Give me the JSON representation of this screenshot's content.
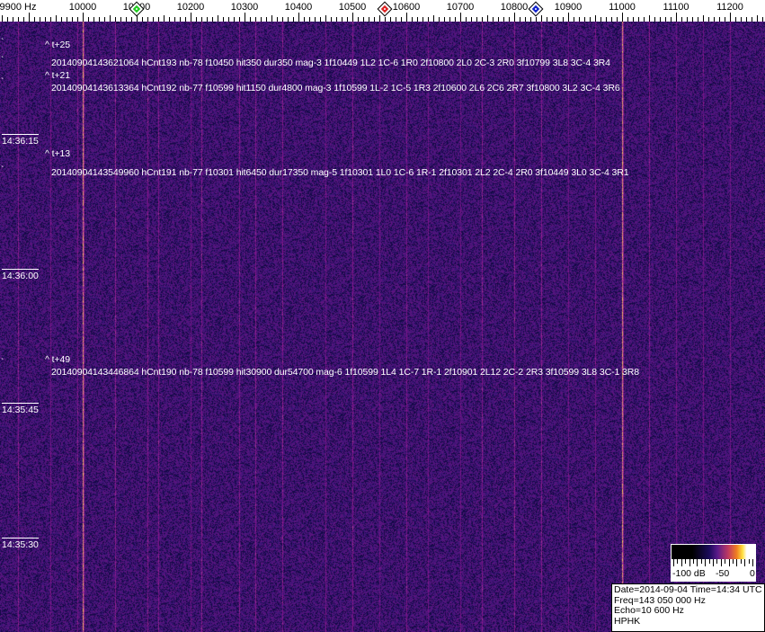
{
  "chart_data": {
    "type": "heatmap",
    "xlabel_unit": "Hz",
    "x_tick_labels": [
      "9900 Hz",
      "10000",
      "10100",
      "10200",
      "10300",
      "10400",
      "10500",
      "10600",
      "10700",
      "10800",
      "10900",
      "11000",
      "11100",
      "11200"
    ],
    "x_ticks": [
      9900,
      10000,
      10100,
      10200,
      10300,
      10400,
      10500,
      10600,
      10700,
      10800,
      10900,
      11000,
      11100,
      11200
    ],
    "xlim": [
      9847,
      11262
    ],
    "y_time_labels": [
      "14:36:15",
      "14:36:00",
      "14:35:45",
      "14:35:30"
    ],
    "markers": [
      {
        "freq": 10100,
        "color": "#22cc22"
      },
      {
        "freq": 10560,
        "color": "#dd2222"
      },
      {
        "freq": 10840,
        "color": "#1122cc"
      }
    ],
    "carriers": [
      10000,
      11000
    ],
    "colorscale": {
      "labels": [
        "-100 dB",
        "-50",
        "0"
      ],
      "range_db": [
        -100,
        0
      ]
    }
  },
  "annotations": [
    {
      "offset": "^ t+25",
      "text": "20140904143621064 hCnt193 nb-78 f10450 hit350 dur350 mag-3 1f10449 1L2 1C-6 1R0 2f10800 2L0 2C-3 2R0 3f10799 3L8 3C-4 3R4"
    },
    {
      "offset": "^ t+21",
      "text": "20140904143613364 hCnt192 nb-77 f10599 hit1150 dur4800 mag-3 1f10599 1L-2 1C-5 1R3 2f10600 2L6 2C6 2R7 3f10800 3L2 3C-4 3R6"
    },
    {
      "offset": "^ t+13",
      "text": "20140904143549960 hCnt191 nb-77 f10301 hit6450 dur17350 mag-5 1f10301 1L0 1C-6 1R-1 2f10301 2L2 2C-4 2R0 3f10449 3L0 3C-4 3R1"
    },
    {
      "offset": "^ t+49",
      "text": "20140904143446864 hCnt190 nb-78 f10599 hit30900 dur54700 mag-6 1f10599 1L4 1C-7 1R-1 2f10901 2L12 2C-2 2R3 3f10599 3L8 3C-1 3R8"
    }
  ],
  "info": {
    "line1": "Date=2014-09-04 Time=14:34 UTC",
    "line2": "Freq=143 050 000 Hz",
    "line3": "Echo=10 600 Hz",
    "line4": "HPHK"
  }
}
